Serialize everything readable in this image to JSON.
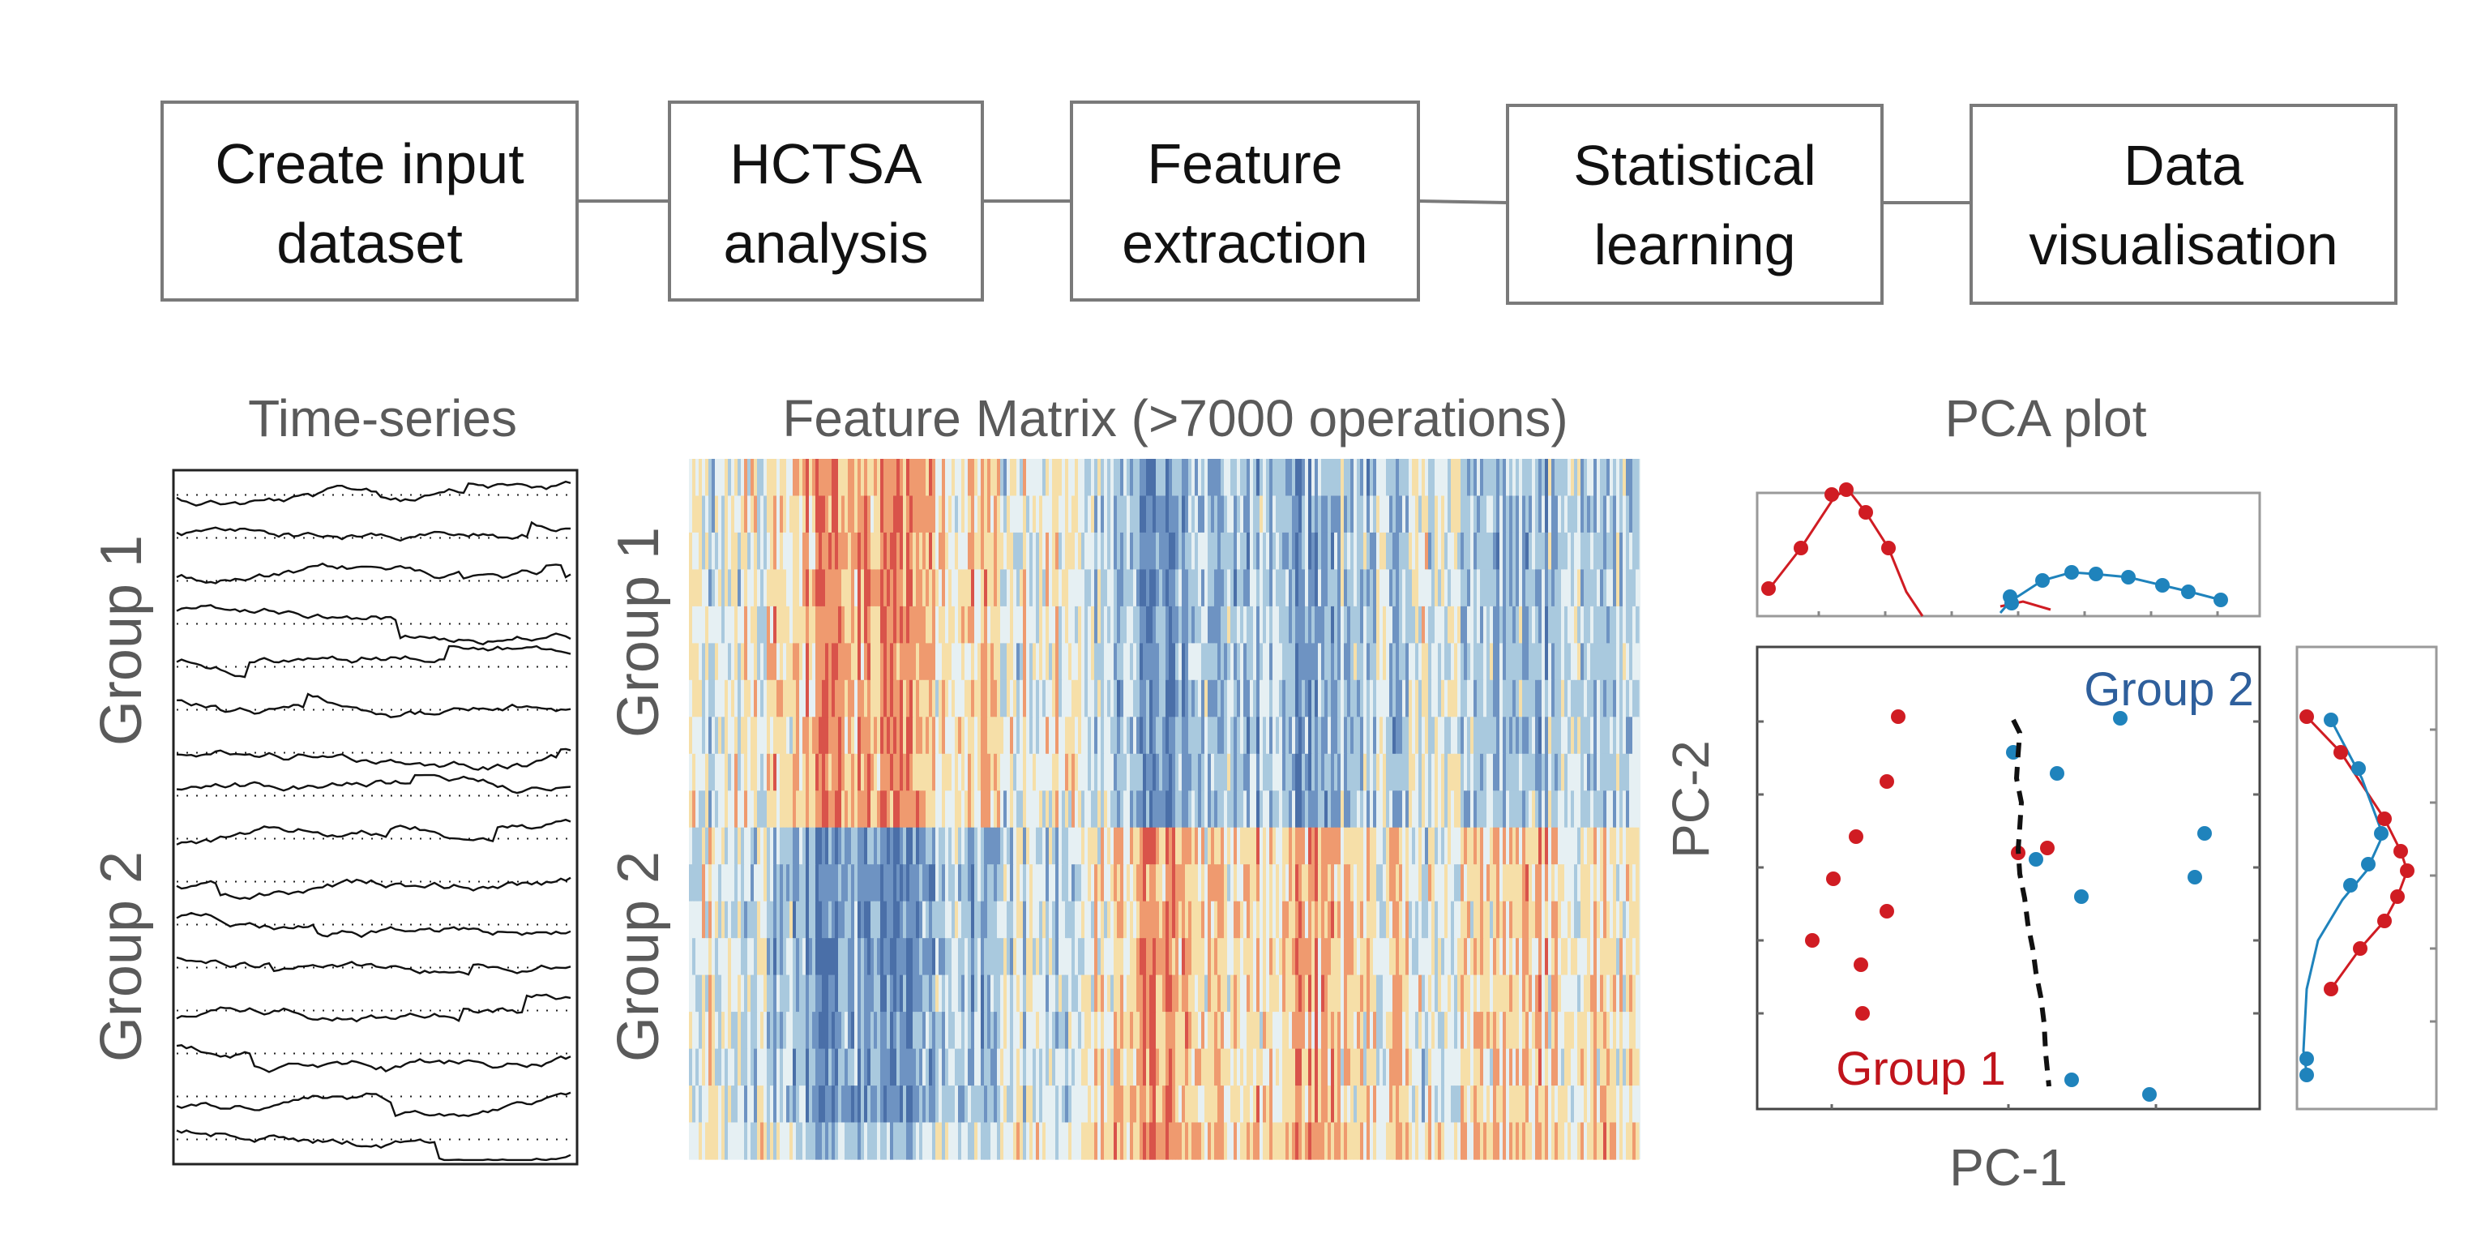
{
  "pipeline": [
    {
      "lines": [
        "Create input",
        "dataset"
      ]
    },
    {
      "lines": [
        "HCTSA",
        "analysis"
      ]
    },
    {
      "lines": [
        "Feature",
        "extraction"
      ]
    },
    {
      "lines": [
        "Statistical",
        "learning"
      ]
    },
    {
      "lines": [
        "Data",
        "visualisation"
      ]
    }
  ],
  "timeseries": {
    "title": "Time-series",
    "group1_label": "Group 1",
    "group2_label": "Group 2",
    "trace_count": 16
  },
  "matrix": {
    "title": "Feature Matrix (>7000 operations)",
    "group1_label": "Group 1",
    "group2_label": "Group 2",
    "rows": 19,
    "palette": [
      "#4a6fa8",
      "#6e93c2",
      "#a9c9de",
      "#e6f0f3",
      "#f6dfa8",
      "#ef9a6f",
      "#d9534a"
    ]
  },
  "pca": {
    "title": "PCA plot",
    "xlabel": "PC-1",
    "ylabel": "PC-2",
    "group1_label": "Group 1",
    "group2_label": "Group 2",
    "colors": {
      "group1": "#d01c23",
      "group2": "#1f83bc"
    }
  }
}
